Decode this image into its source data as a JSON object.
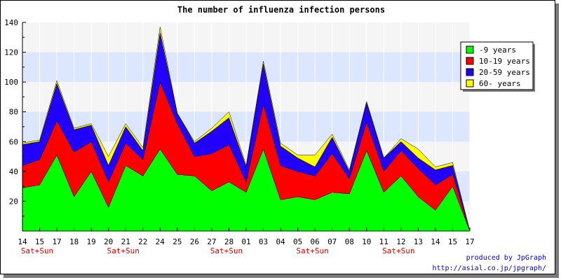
{
  "chart_data": {
    "type": "area",
    "stacked": true,
    "title": "The number of influenza infection persons",
    "xlabel": "",
    "ylabel": "",
    "ylim": [
      0,
      140
    ],
    "yticks": [
      20,
      40,
      60,
      80,
      100,
      120,
      140
    ],
    "grid": true,
    "legend_position": "top-right",
    "categories": [
      "14",
      "15",
      "17",
      "18",
      "19",
      "20",
      "21",
      "22",
      "24",
      "25",
      "26",
      "27",
      "28",
      "01",
      "03",
      "04",
      "05",
      "06",
      "07",
      "08",
      "10",
      "11",
      "12",
      "13",
      "14",
      "15",
      "17"
    ],
    "weekend_label": "Sat+Sun",
    "weekend_categories": [
      0,
      5,
      11,
      16,
      21
    ],
    "series": [
      {
        "name": "-9 years",
        "color": "#00ff00",
        "values": [
          29,
          31,
          51,
          23,
          40,
          16,
          44,
          37,
          55,
          38,
          37,
          27,
          33,
          26,
          55,
          21,
          23,
          21,
          26,
          25,
          54,
          26,
          37,
          23,
          14,
          30,
          0
        ]
      },
      {
        "name": "10-19 years",
        "color": "#ff0000",
        "values": [
          15,
          17,
          23,
          30,
          20,
          17,
          15,
          11,
          45,
          34,
          13,
          25,
          25,
          7,
          30,
          23,
          17,
          16,
          26,
          10,
          19,
          14,
          17,
          19,
          17,
          8,
          0
        ]
      },
      {
        "name": "20-59 years",
        "color": "#2200ff",
        "values": [
          14,
          12,
          25,
          15,
          11,
          11,
          11,
          6,
          33,
          7,
          9,
          15,
          18,
          10,
          27,
          13,
          9,
          6,
          11,
          5,
          13,
          9,
          6,
          7,
          10,
          6,
          0
        ]
      },
      {
        "name": "60- years",
        "color": "#ffff00",
        "values": [
          1,
          1,
          2,
          1,
          1,
          6,
          2,
          2,
          4,
          0,
          1,
          2,
          4,
          1,
          2,
          2,
          2,
          8,
          2,
          1,
          1,
          0,
          2,
          6,
          2,
          2,
          0
        ]
      }
    ]
  },
  "credit": {
    "line1": "produced by JpGraph",
    "line2": "http://asial.co.jp/jpgraph/"
  }
}
